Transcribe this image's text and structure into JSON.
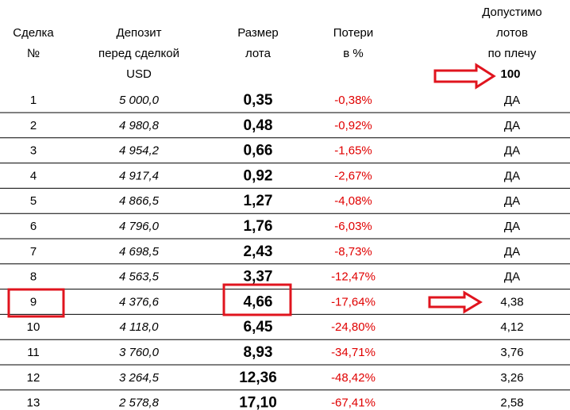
{
  "table": {
    "header": [
      [
        "Сделка",
        "№"
      ],
      [
        "Депозит",
        "перед сделкой",
        "USD"
      ],
      [
        "Размер",
        "лота"
      ],
      [
        "Потери",
        "в %"
      ],
      [
        "Допустимо",
        "лотов",
        "по плечу",
        "100"
      ]
    ],
    "rows": [
      [
        "1",
        "5 000,0",
        "0,35",
        "-0,38%",
        "ДА"
      ],
      [
        "2",
        "4 980,8",
        "0,48",
        "-0,92%",
        "ДА"
      ],
      [
        "3",
        "4 954,2",
        "0,66",
        "-1,65%",
        "ДА"
      ],
      [
        "4",
        "4 917,4",
        "0,92",
        "-2,67%",
        "ДА"
      ],
      [
        "5",
        "4 866,5",
        "1,27",
        "-4,08%",
        "ДА"
      ],
      [
        "6",
        "4 796,0",
        "1,76",
        "-6,03%",
        "ДА"
      ],
      [
        "7",
        "4 698,5",
        "2,43",
        "-8,73%",
        "ДА"
      ],
      [
        "8",
        "4 563,5",
        "3,37",
        "-12,47%",
        "ДА"
      ],
      [
        "9",
        "4 376,6",
        "4,66",
        "-17,64%",
        "4,38"
      ],
      [
        "10",
        "4 118,0",
        "6,45",
        "-24,80%",
        "4,12"
      ],
      [
        "11",
        "3 760,0",
        "8,93",
        "-34,71%",
        "3,76"
      ],
      [
        "12",
        "3 264,5",
        "12,36",
        "-48,42%",
        "3,26"
      ],
      [
        "13",
        "2 578,8",
        "17,10",
        "-67,41%",
        "2,58"
      ]
    ]
  }
}
